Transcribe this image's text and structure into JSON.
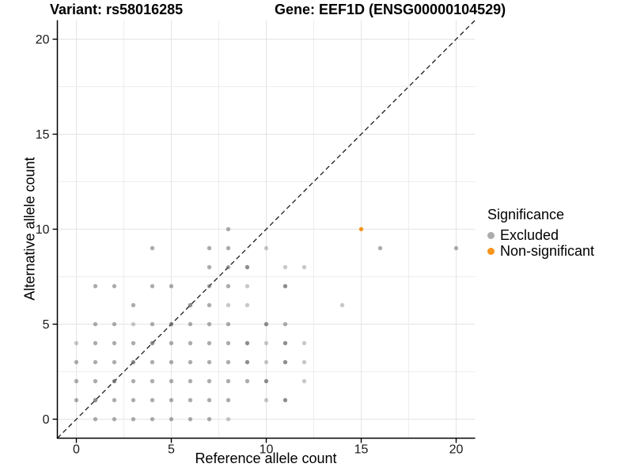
{
  "titles": {
    "variant": "Variant: rs58016285",
    "gene": "Gene: EEF1D (ENSG00000104529)"
  },
  "legend": {
    "title": "Significance",
    "items": [
      {
        "label": "Excluded",
        "color": "#acacac"
      },
      {
        "label": "Non-significant",
        "color": "#f7941e"
      }
    ]
  },
  "chart_data": {
    "type": "scatter",
    "title_left": "Variant: rs58016285",
    "title_right": "Gene: EEF1D (ENSG00000104529)",
    "xlabel": "Reference allele count",
    "ylabel": "Alternative allele count",
    "xlim": [
      -1,
      21
    ],
    "ylim": [
      -1,
      21
    ],
    "xticks": [
      0,
      5,
      10,
      15,
      20
    ],
    "yticks": [
      0,
      5,
      10,
      15,
      20
    ],
    "grid": {
      "show": true,
      "major_every": 5,
      "minor_every": 2.5,
      "major_color": "#e4e4e4",
      "minor_color": "#ededed"
    },
    "identity_line": {
      "slope": 1,
      "intercept": 0,
      "style": "dashed",
      "color": "#1a1a1a"
    },
    "point_base_color": "#666666",
    "alpha_levels": {
      "l": 0.36,
      "m": 0.54,
      "d": 0.74,
      "o": 1.0
    },
    "series": [
      {
        "name": "Excluded",
        "color": "#acacac",
        "points": [
          [
            1,
            0,
            "m"
          ],
          [
            2,
            0,
            "m"
          ],
          [
            3,
            0,
            "m"
          ],
          [
            4,
            0,
            "m"
          ],
          [
            5,
            0,
            "m"
          ],
          [
            6,
            0,
            "m"
          ],
          [
            7,
            0,
            "m"
          ],
          [
            8,
            0,
            "l"
          ],
          [
            0,
            1,
            "m"
          ],
          [
            1,
            1,
            "d"
          ],
          [
            2,
            1,
            "m"
          ],
          [
            3,
            1,
            "m"
          ],
          [
            4,
            1,
            "m"
          ],
          [
            5,
            1,
            "m"
          ],
          [
            6,
            1,
            "m"
          ],
          [
            7,
            1,
            "m"
          ],
          [
            8,
            1,
            "m"
          ],
          [
            10,
            1,
            "l"
          ],
          [
            11,
            1,
            "d"
          ],
          [
            0,
            2,
            "m"
          ],
          [
            1,
            2,
            "m"
          ],
          [
            2,
            2,
            "d"
          ],
          [
            3,
            2,
            "m"
          ],
          [
            4,
            2,
            "m"
          ],
          [
            5,
            2,
            "m"
          ],
          [
            6,
            2,
            "m"
          ],
          [
            7,
            2,
            "m"
          ],
          [
            8,
            2,
            "m"
          ],
          [
            9,
            2,
            "m"
          ],
          [
            10,
            2,
            "d"
          ],
          [
            12,
            2,
            "l"
          ],
          [
            0,
            3,
            "m"
          ],
          [
            1,
            3,
            "m"
          ],
          [
            2,
            3,
            "m"
          ],
          [
            3,
            3,
            "d"
          ],
          [
            4,
            3,
            "m"
          ],
          [
            5,
            3,
            "m"
          ],
          [
            6,
            3,
            "m"
          ],
          [
            7,
            3,
            "m"
          ],
          [
            8,
            3,
            "m"
          ],
          [
            9,
            3,
            "d"
          ],
          [
            10,
            3,
            "l"
          ],
          [
            11,
            3,
            "d"
          ],
          [
            12,
            3,
            "l"
          ],
          [
            0,
            4,
            "l"
          ],
          [
            1,
            4,
            "m"
          ],
          [
            2,
            4,
            "m"
          ],
          [
            3,
            4,
            "m"
          ],
          [
            4,
            4,
            "d"
          ],
          [
            5,
            4,
            "m"
          ],
          [
            6,
            4,
            "m"
          ],
          [
            7,
            4,
            "m"
          ],
          [
            8,
            4,
            "m"
          ],
          [
            9,
            4,
            "d"
          ],
          [
            10,
            4,
            "l"
          ],
          [
            11,
            4,
            "d"
          ],
          [
            12,
            4,
            "l"
          ],
          [
            1,
            5,
            "m"
          ],
          [
            2,
            5,
            "m"
          ],
          [
            3,
            5,
            "l"
          ],
          [
            4,
            5,
            "m"
          ],
          [
            5,
            5,
            "d"
          ],
          [
            6,
            5,
            "m"
          ],
          [
            7,
            5,
            "m"
          ],
          [
            8,
            5,
            "m"
          ],
          [
            10,
            5,
            "d"
          ],
          [
            11,
            5,
            "m"
          ],
          [
            3,
            6,
            "m"
          ],
          [
            6,
            6,
            "d"
          ],
          [
            7,
            6,
            "m"
          ],
          [
            8,
            6,
            "l"
          ],
          [
            9,
            6,
            "l"
          ],
          [
            14,
            6,
            "l"
          ],
          [
            1,
            7,
            "m"
          ],
          [
            2,
            7,
            "m"
          ],
          [
            4,
            7,
            "m"
          ],
          [
            5,
            7,
            "m"
          ],
          [
            7,
            7,
            "m"
          ],
          [
            8,
            7,
            "m"
          ],
          [
            9,
            7,
            "l"
          ],
          [
            11,
            7,
            "d"
          ],
          [
            7,
            8,
            "m"
          ],
          [
            8,
            8,
            "m"
          ],
          [
            9,
            8,
            "d"
          ],
          [
            11,
            8,
            "l"
          ],
          [
            12,
            8,
            "l"
          ],
          [
            4,
            9,
            "m"
          ],
          [
            7,
            9,
            "m"
          ],
          [
            8,
            9,
            "m"
          ],
          [
            10,
            9,
            "l"
          ],
          [
            16,
            9,
            "m"
          ],
          [
            20,
            9,
            "m"
          ],
          [
            8,
            10,
            "m"
          ]
        ]
      },
      {
        "name": "Non-significant",
        "color": "#f7941e",
        "points": [
          [
            15,
            10,
            "o"
          ]
        ]
      }
    ]
  }
}
